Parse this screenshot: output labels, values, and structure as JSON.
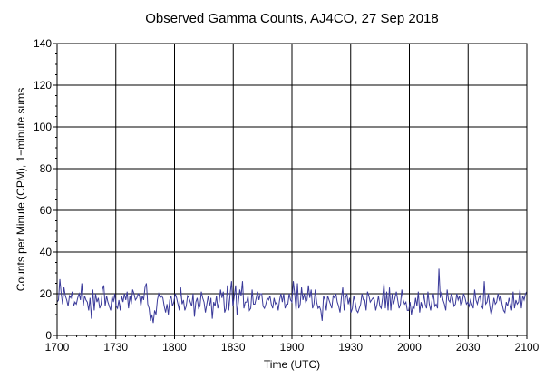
{
  "chart_data": {
    "type": "line",
    "title": "Observed Gamma Counts, AJ4CO, 27 Sep 2018",
    "xlabel": "Time (UTC)",
    "ylabel": "Counts per Minute (CPM), 1−minute sums",
    "x_tick_labels": [
      "1700",
      "1730",
      "1800",
      "1830",
      "1900",
      "1930",
      "2000",
      "2030",
      "2100"
    ],
    "y_tick_labels": [
      "0",
      "20",
      "40",
      "60",
      "80",
      "100",
      "120",
      "140"
    ],
    "ylim": [
      0,
      140
    ],
    "xlim": [
      "17:00",
      "21:00"
    ],
    "x_unit": "minutes after 17:00 UTC, 1-minute steps",
    "grid": true,
    "series": [
      {
        "color": "#3a3a9a",
        "values": [
          16,
          17,
          27,
          20,
          15,
          23,
          19,
          17,
          14,
          19,
          18,
          21,
          14,
          16,
          15,
          18,
          20,
          17,
          25,
          14,
          19,
          17,
          16,
          12,
          18,
          8,
          22,
          12,
          20,
          16,
          18,
          13,
          15,
          22,
          24,
          14,
          19,
          16,
          14,
          12,
          19,
          16,
          20,
          14,
          13,
          17,
          12,
          19,
          16,
          20,
          17,
          21,
          13,
          19,
          15,
          22,
          20,
          17,
          18,
          20,
          19,
          14,
          19,
          17,
          23,
          25,
          15,
          13,
          7,
          10,
          6,
          12,
          10,
          17,
          20,
          18,
          19,
          18,
          14,
          11,
          15,
          10,
          17,
          19,
          14,
          16,
          20,
          18,
          15,
          12,
          23,
          15,
          17,
          12,
          14,
          19,
          18,
          16,
          14,
          20,
          9,
          16,
          18,
          13,
          14,
          21,
          18,
          16,
          11,
          15,
          19,
          14,
          18,
          8,
          16,
          14,
          19,
          13,
          16,
          22,
          18,
          21,
          11,
          13,
          24,
          12,
          20,
          26,
          14,
          19,
          24,
          10,
          16,
          22,
          19,
          26,
          13,
          16,
          16,
          19,
          12,
          13,
          22,
          15,
          15,
          18,
          21,
          17,
          20,
          20,
          14,
          13,
          15,
          18,
          17,
          19,
          15,
          13,
          18,
          15,
          16,
          12,
          17,
          20,
          16,
          20,
          13,
          15,
          15,
          20,
          17,
          16,
          26,
          20,
          12,
          25,
          13,
          15,
          23,
          17,
          20,
          16,
          17,
          24,
          18,
          22,
          13,
          15,
          22,
          16,
          13,
          14,
          12,
          7,
          19,
          17,
          12,
          19,
          17,
          15,
          13,
          19,
          18,
          20,
          16,
          14,
          11,
          18,
          23,
          12,
          18,
          20,
          15,
          18,
          11,
          13,
          19,
          16,
          12,
          11,
          13,
          15,
          20,
          17,
          17,
          12,
          21,
          19,
          16,
          17,
          18,
          17,
          12,
          15,
          19,
          14,
          13,
          18,
          25,
          13,
          21,
          12,
          23,
          12,
          20,
          15,
          18,
          21,
          17,
          13,
          15,
          22,
          17,
          15,
          16,
          12,
          12,
          16,
          10,
          14,
          13,
          18,
          14,
          21,
          11,
          16,
          13,
          20,
          15,
          13,
          21,
          15,
          12,
          17,
          20,
          14,
          15,
          13,
          32,
          18,
          21,
          17,
          15,
          12,
          22,
          17,
          16,
          20,
          18,
          14,
          15,
          20,
          17,
          19,
          14,
          16,
          20,
          18,
          15,
          16,
          14,
          17,
          15,
          13,
          22,
          17,
          15,
          18,
          19,
          14,
          13,
          26,
          15,
          16,
          20,
          14,
          10,
          13,
          18,
          15,
          16,
          20,
          17,
          19,
          15,
          12,
          11,
          16,
          14,
          18,
          15,
          12,
          21,
          13,
          17,
          15,
          16,
          22,
          13,
          19,
          17,
          20,
          21
        ]
      }
    ]
  }
}
